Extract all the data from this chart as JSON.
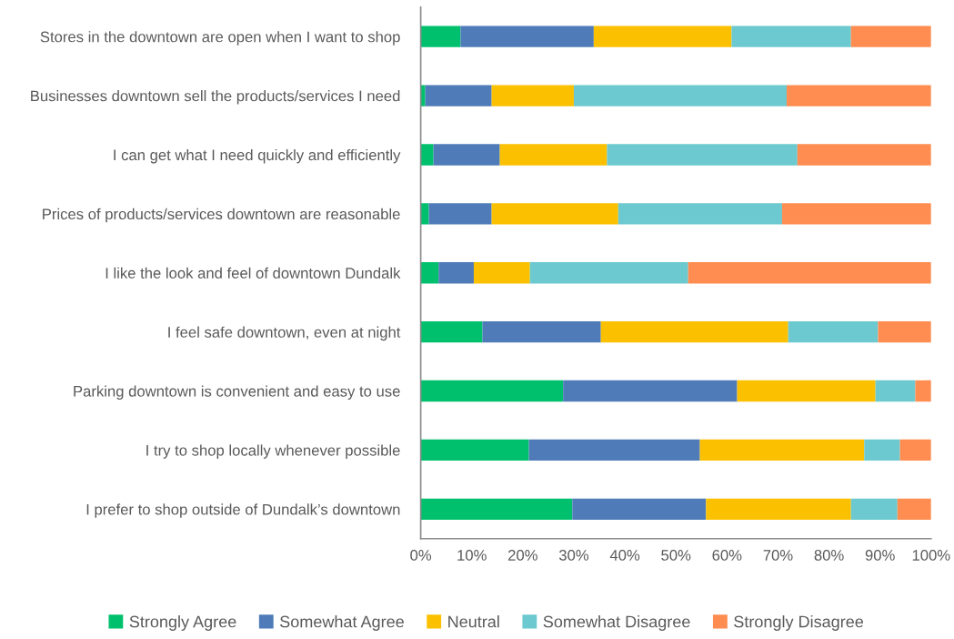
{
  "chart_data": {
    "type": "bar",
    "orientation": "horizontal",
    "stacked": true,
    "categories": [
      "Stores in the downtown are open when I want to shop",
      "Businesses downtown sell the products/services I need",
      "I can get what I need quickly and efficiently",
      "Prices of products/services downtown are reasonable",
      "I like the look and feel of downtown Dundalk",
      "I feel safe downtown, even at night",
      "Parking downtown is convenient and easy to use",
      "I try to shop locally whenever possible",
      "I prefer to shop outside of Dundalk’s downtown"
    ],
    "series": [
      {
        "name": "Strongly Agree",
        "color": "#00c06e",
        "values": [
          7.8,
          0.9,
          2.5,
          1.6,
          3.5,
          12.1,
          27.9,
          21.2,
          29.7
        ]
      },
      {
        "name": "Somewhat Agree",
        "color": "#4f7cb8",
        "values": [
          26.1,
          13.0,
          13.0,
          12.3,
          6.9,
          23.2,
          34.1,
          33.5,
          26.2
        ]
      },
      {
        "name": "Neutral",
        "color": "#fbc000",
        "values": [
          27.0,
          16.1,
          21.0,
          24.8,
          11.0,
          36.7,
          27.1,
          32.2,
          28.4
        ]
      },
      {
        "name": "Somewhat Disagree",
        "color": "#6bc9cf",
        "values": [
          23.4,
          41.7,
          37.3,
          32.1,
          31.0,
          17.6,
          7.8,
          7.0,
          9.1
        ]
      },
      {
        "name": "Strongly Disagree",
        "color": "#ff8c50",
        "values": [
          15.7,
          28.3,
          26.2,
          29.2,
          47.6,
          10.4,
          3.1,
          6.1,
          6.6
        ]
      }
    ],
    "xlim": [
      0,
      100
    ],
    "xticks": [
      {
        "value": 0,
        "label": "0%"
      },
      {
        "value": 10,
        "label": "10%"
      },
      {
        "value": 20,
        "label": "20%"
      },
      {
        "value": 30,
        "label": "30%"
      },
      {
        "value": 40,
        "label": "40%"
      },
      {
        "value": 50,
        "label": "50%"
      },
      {
        "value": 60,
        "label": "60%"
      },
      {
        "value": 70,
        "label": "70%"
      },
      {
        "value": 80,
        "label": "80%"
      },
      {
        "value": 90,
        "label": "90%"
      },
      {
        "value": 100,
        "label": "100%"
      }
    ],
    "grid": false,
    "legend": "bottom"
  }
}
